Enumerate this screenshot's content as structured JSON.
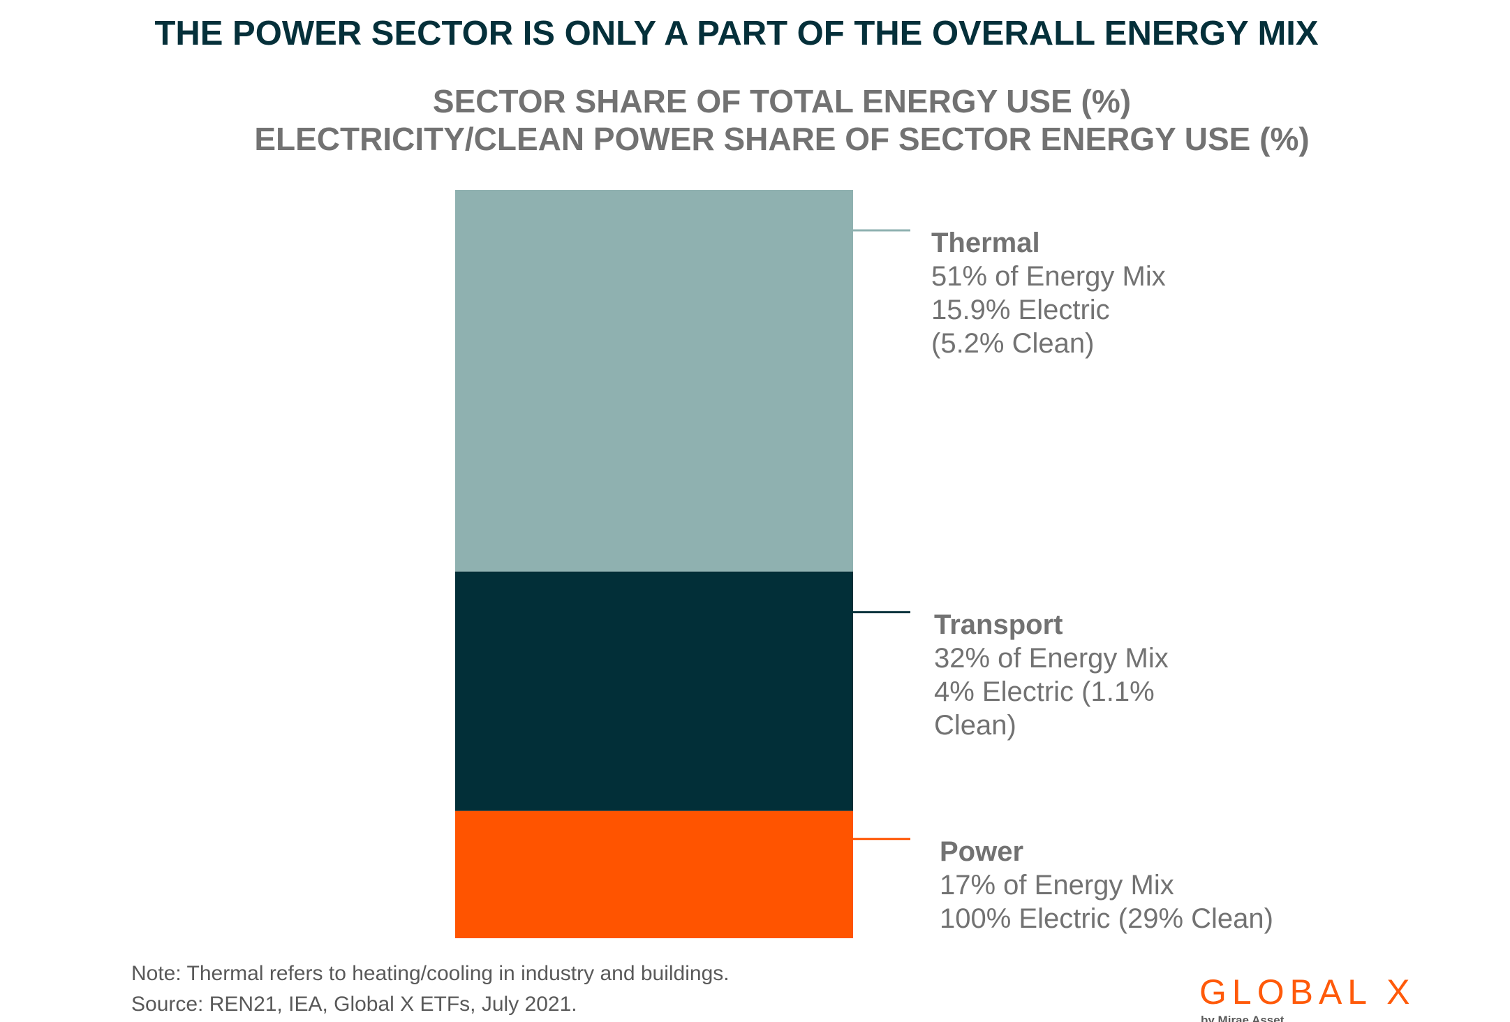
{
  "title": "THE POWER SECTOR IS ONLY A PART OF THE OVERALL ENERGY MIX",
  "subtitle_line1": "SECTOR SHARE OF TOTAL ENERGY USE (%)",
  "subtitle_line2": "ELECTRICITY/CLEAN POWER SHARE OF SECTOR ENERGY USE (%)",
  "chart_data": {
    "type": "bar",
    "stacked": true,
    "title": "SECTOR SHARE OF TOTAL ENERGY USE (%)",
    "subtitle": "ELECTRICITY/CLEAN POWER SHARE OF SECTOR ENERGY USE (%)",
    "series": [
      {
        "name": "Thermal",
        "value": 51,
        "color": "#8fb1b0",
        "lines": [
          "51% of Energy Mix",
          "15.9% Electric",
          "(5.2% Clean)"
        ],
        "electric_pct": 15.9,
        "clean_pct": 5.2
      },
      {
        "name": "Transport",
        "value": 32,
        "color": "#022f38",
        "lines": [
          "32% of Energy Mix",
          "4% Electric (1.1%",
          "Clean)"
        ],
        "electric_pct": 4,
        "clean_pct": 1.1
      },
      {
        "name": "Power",
        "value": 17,
        "color": "#ff5400",
        "lines": [
          "17% of Energy Mix",
          "100% Electric (29% Clean)"
        ],
        "electric_pct": 100,
        "clean_pct": 29
      }
    ],
    "legend_placement": "right",
    "grid": false
  },
  "note": "Note: Thermal refers to heating/cooling in industry and buildings.",
  "source": "Source: REN21, IEA, Global X ETFs, July 2021.",
  "logo": {
    "word": "GLOBAL X",
    "tagline": "by Mirae Asset",
    "color": "#ff5a0a"
  }
}
